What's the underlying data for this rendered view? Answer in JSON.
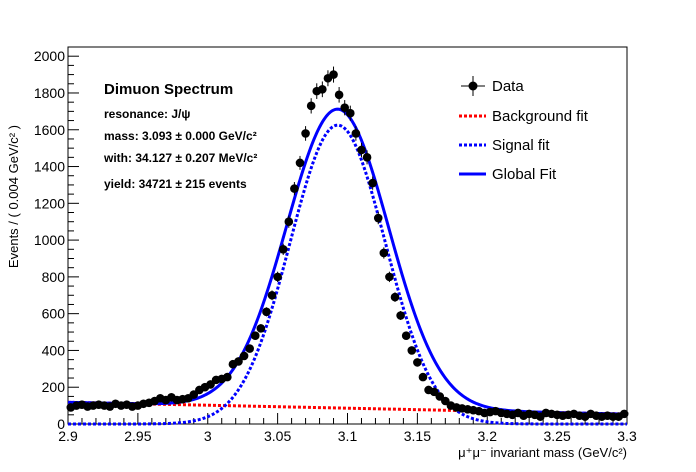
{
  "chart_data": {
    "type": "scatter",
    "xlabel": "μ⁺μ⁻ invariant mass (GeV/c²)",
    "ylabel": "Events / ( 0.004 GeV/c² )",
    "xlim": [
      2.9,
      3.3
    ],
    "ylim": [
      0,
      2050
    ],
    "x_ticks": [
      2.9,
      2.95,
      3.0,
      3.05,
      3.1,
      3.15,
      3.2,
      3.25,
      3.3
    ],
    "x_tick_labels": [
      "2.9",
      "2.95",
      "3",
      "3.05",
      "3.1",
      "3.15",
      "3.2",
      "3.25",
      "3.3"
    ],
    "y_ticks": [
      0,
      200,
      400,
      600,
      800,
      1000,
      1200,
      1400,
      1600,
      1800,
      2000
    ],
    "y_tick_labels": [
      "0",
      "200",
      "400",
      "600",
      "800",
      "1000",
      "1200",
      "1400",
      "1600",
      "1800",
      "2000"
    ],
    "legend_position": "top-right",
    "annotation": {
      "title": "Dimuon Spectrum",
      "lines": [
        "resonance: J/ψ",
        "mass: 3.093 ± 0.000 GeV/c²",
        "with: 34.127 ± 0.207 MeV/c²",
        "yield: 34721 ± 215 events"
      ]
    },
    "series": [
      {
        "name": "Data",
        "kind": "points_with_errors",
        "color": "#000000",
        "x": [
          2.902,
          2.906,
          2.91,
          2.914,
          2.918,
          2.922,
          2.926,
          2.93,
          2.934,
          2.938,
          2.942,
          2.946,
          2.95,
          2.954,
          2.958,
          2.962,
          2.966,
          2.97,
          2.974,
          2.978,
          2.982,
          2.986,
          2.99,
          2.994,
          2.998,
          3.002,
          3.006,
          3.01,
          3.014,
          3.018,
          3.022,
          3.026,
          3.03,
          3.034,
          3.038,
          3.042,
          3.046,
          3.05,
          3.054,
          3.058,
          3.062,
          3.066,
          3.07,
          3.074,
          3.078,
          3.082,
          3.086,
          3.09,
          3.094,
          3.098,
          3.102,
          3.106,
          3.11,
          3.114,
          3.118,
          3.122,
          3.126,
          3.13,
          3.134,
          3.138,
          3.142,
          3.146,
          3.15,
          3.154,
          3.158,
          3.162,
          3.166,
          3.17,
          3.174,
          3.178,
          3.182,
          3.186,
          3.19,
          3.194,
          3.198,
          3.202,
          3.206,
          3.21,
          3.214,
          3.218,
          3.222,
          3.226,
          3.23,
          3.234,
          3.238,
          3.242,
          3.246,
          3.25,
          3.254,
          3.258,
          3.262,
          3.266,
          3.27,
          3.274,
          3.278,
          3.282,
          3.286,
          3.29,
          3.294,
          3.298
        ],
        "y": [
          90,
          100,
          105,
          95,
          100,
          105,
          100,
          95,
          110,
          100,
          105,
          95,
          100,
          110,
          115,
          125,
          140,
          130,
          145,
          130,
          135,
          140,
          160,
          185,
          200,
          215,
          240,
          245,
          255,
          325,
          340,
          370,
          410,
          480,
          520,
          610,
          700,
          800,
          950,
          1100,
          1280,
          1420,
          1580,
          1730,
          1810,
          1820,
          1880,
          1900,
          1790,
          1720,
          1690,
          1580,
          1490,
          1450,
          1310,
          1120,
          930,
          800,
          690,
          590,
          480,
          400,
          335,
          255,
          185,
          175,
          150,
          125,
          100,
          90,
          85,
          80,
          75,
          70,
          60,
          65,
          70,
          60,
          55,
          50,
          60,
          45,
          55,
          50,
          40,
          60,
          55,
          50,
          45,
          50,
          55,
          45,
          40,
          55,
          45,
          40,
          45,
          40,
          40,
          55
        ]
      },
      {
        "name": "Background fit",
        "kind": "dashed_line",
        "color": "#ff0000"
      },
      {
        "name": "Signal fit",
        "kind": "dashed_line",
        "color": "#0000ff"
      },
      {
        "name": "Global Fit",
        "kind": "solid_line",
        "color": "#0000ff"
      }
    ]
  }
}
